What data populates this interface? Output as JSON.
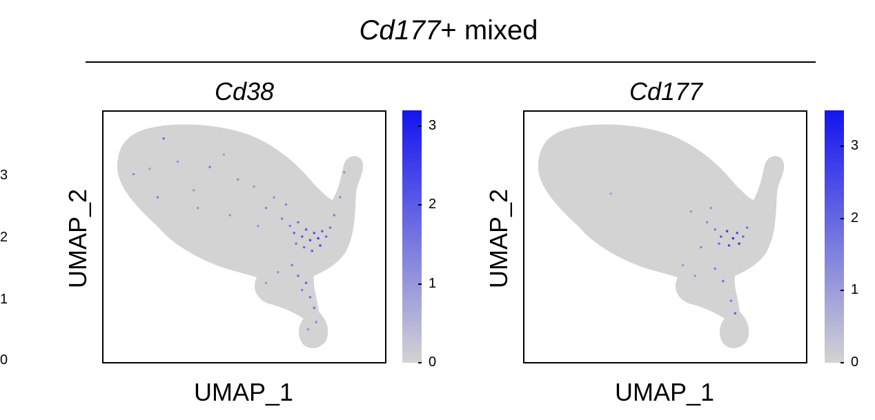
{
  "title_italic": "Cd177",
  "title_rest": "+ mixed",
  "edge_axis": {
    "labels": [
      "3",
      "2",
      "1",
      "0"
    ],
    "values": [
      3,
      2,
      1,
      0
    ]
  },
  "chart_data": [
    {
      "type": "scatter",
      "title": "Cd38",
      "xlabel": "UMAP_1",
      "ylabel": "UMAP_2",
      "colorbar": {
        "low_color": "#d3d3d3",
        "high_color": "#1414f0",
        "range": [
          0,
          3.2
        ],
        "ticks": [
          0,
          1,
          2,
          3
        ],
        "tick_labels": [
          "0",
          "1",
          "2",
          "3"
        ]
      },
      "background_color": "#d3d3d3",
      "points": [
        {
          "x": -6.0,
          "y": 4.5,
          "v": 1.2
        },
        {
          "x": -5.2,
          "y": 4.8,
          "v": 0.8
        },
        {
          "x": -4.5,
          "y": 6.5,
          "v": 1.6
        },
        {
          "x": -3.8,
          "y": 5.2,
          "v": 1.0
        },
        {
          "x": -3.0,
          "y": 3.6,
          "v": 0.9
        },
        {
          "x": -2.2,
          "y": 4.9,
          "v": 1.4
        },
        {
          "x": -1.5,
          "y": 5.6,
          "v": 0.8
        },
        {
          "x": -0.8,
          "y": 4.2,
          "v": 1.1
        },
        {
          "x": 0.0,
          "y": 3.8,
          "v": 0.9
        },
        {
          "x": 0.6,
          "y": 2.6,
          "v": 1.2
        },
        {
          "x": 1.0,
          "y": 3.2,
          "v": 1.0
        },
        {
          "x": 1.4,
          "y": 2.0,
          "v": 1.4
        },
        {
          "x": 1.8,
          "y": 1.6,
          "v": 1.5
        },
        {
          "x": 2.0,
          "y": 1.2,
          "v": 1.8
        },
        {
          "x": 2.2,
          "y": 1.8,
          "v": 1.6
        },
        {
          "x": 2.4,
          "y": 1.0,
          "v": 2.0
        },
        {
          "x": 2.6,
          "y": 1.4,
          "v": 1.9
        },
        {
          "x": 2.8,
          "y": 0.8,
          "v": 2.2
        },
        {
          "x": 3.0,
          "y": 1.2,
          "v": 2.1
        },
        {
          "x": 3.2,
          "y": 0.9,
          "v": 2.4
        },
        {
          "x": 3.4,
          "y": 1.3,
          "v": 2.0
        },
        {
          "x": 3.6,
          "y": 1.0,
          "v": 1.8
        },
        {
          "x": 3.8,
          "y": 1.5,
          "v": 1.6
        },
        {
          "x": 2.5,
          "y": 0.4,
          "v": 1.7
        },
        {
          "x": 2.9,
          "y": 0.2,
          "v": 1.9
        },
        {
          "x": 3.3,
          "y": 0.5,
          "v": 2.3
        },
        {
          "x": 2.1,
          "y": 0.6,
          "v": 1.5
        },
        {
          "x": 4.0,
          "y": 2.2,
          "v": 1.4
        },
        {
          "x": 4.3,
          "y": 3.2,
          "v": 1.2
        },
        {
          "x": 4.5,
          "y": 4.6,
          "v": 1.0
        },
        {
          "x": 1.9,
          "y": -0.6,
          "v": 1.4
        },
        {
          "x": 2.2,
          "y": -1.2,
          "v": 1.6
        },
        {
          "x": 2.6,
          "y": -1.6,
          "v": 1.8
        },
        {
          "x": 2.8,
          "y": -2.4,
          "v": 1.5
        },
        {
          "x": 3.0,
          "y": -3.0,
          "v": 1.6
        },
        {
          "x": 2.4,
          "y": -2.0,
          "v": 1.3
        },
        {
          "x": 1.2,
          "y": -1.0,
          "v": 1.0
        },
        {
          "x": 0.6,
          "y": -1.6,
          "v": 0.9
        },
        {
          "x": 3.1,
          "y": -3.8,
          "v": 1.2
        },
        {
          "x": 2.7,
          "y": -4.2,
          "v": 1.0
        },
        {
          "x": -4.8,
          "y": 3.2,
          "v": 1.3
        },
        {
          "x": -2.8,
          "y": 2.6,
          "v": 0.9
        },
        {
          "x": -1.2,
          "y": 2.2,
          "v": 1.1
        },
        {
          "x": 0.2,
          "y": 1.6,
          "v": 1.0
        },
        {
          "x": 1.6,
          "y": 2.8,
          "v": 1.3
        }
      ]
    },
    {
      "type": "scatter",
      "title": "Cd177",
      "xlabel": "UMAP_1",
      "ylabel": "UMAP_2",
      "colorbar": {
        "low_color": "#d3d3d3",
        "high_color": "#1414f0",
        "range": [
          0,
          3.5
        ],
        "ticks": [
          0,
          1,
          2,
          3
        ],
        "tick_labels": [
          "0",
          "1",
          "2",
          "3"
        ]
      },
      "background_color": "#d3d3d3",
      "points": [
        {
          "x": 1.6,
          "y": 1.8,
          "v": 1.2
        },
        {
          "x": 2.0,
          "y": 1.4,
          "v": 1.6
        },
        {
          "x": 2.3,
          "y": 1.0,
          "v": 2.2
        },
        {
          "x": 2.6,
          "y": 1.3,
          "v": 2.6
        },
        {
          "x": 2.9,
          "y": 0.9,
          "v": 2.8
        },
        {
          "x": 3.1,
          "y": 1.2,
          "v": 2.4
        },
        {
          "x": 3.4,
          "y": 1.0,
          "v": 2.0
        },
        {
          "x": 2.7,
          "y": 0.5,
          "v": 2.5
        },
        {
          "x": 3.2,
          "y": 0.6,
          "v": 2.7
        },
        {
          "x": 2.2,
          "y": 0.6,
          "v": 1.8
        },
        {
          "x": 3.6,
          "y": 1.5,
          "v": 1.7
        },
        {
          "x": 1.3,
          "y": 0.4,
          "v": 1.3
        },
        {
          "x": 2.0,
          "y": -0.8,
          "v": 1.5
        },
        {
          "x": 2.4,
          "y": -1.5,
          "v": 1.8
        },
        {
          "x": 2.8,
          "y": -2.6,
          "v": 1.6
        },
        {
          "x": 3.0,
          "y": -3.3,
          "v": 2.0
        },
        {
          "x": 1.0,
          "y": -1.2,
          "v": 1.1
        },
        {
          "x": 0.4,
          "y": -0.6,
          "v": 1.0
        },
        {
          "x": -3.2,
          "y": 3.4,
          "v": 0.9
        },
        {
          "x": 0.8,
          "y": 2.4,
          "v": 1.0
        },
        {
          "x": 1.8,
          "y": 2.6,
          "v": 1.1
        }
      ]
    }
  ]
}
